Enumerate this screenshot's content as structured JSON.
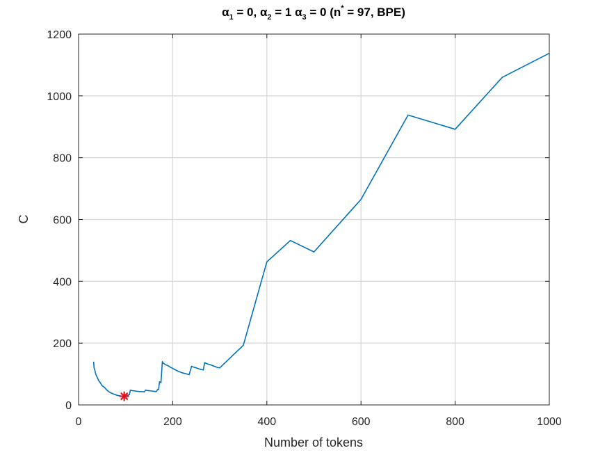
{
  "chart_data": {
    "type": "line",
    "title": {
      "alpha": "α",
      "sub1": "1",
      "sub2": "2",
      "sub3": "3",
      "part1": " = 0, ",
      "part2": " = 1 ",
      "part3": " = 0 (n",
      "sup": "*",
      "part4": " = 97, BPE)"
    },
    "xlabel": "Number of tokens",
    "ylabel": "C",
    "xlim": [
      0,
      1000
    ],
    "ylim": [
      0,
      1200
    ],
    "xticks": [
      0,
      200,
      400,
      600,
      800,
      1000
    ],
    "yticks": [
      0,
      200,
      400,
      600,
      800,
      1000,
      1200
    ],
    "grid": true,
    "line_color": "#0072BD",
    "marker_color": "#E0141E",
    "series": [
      {
        "x": [
          32,
          33,
          35,
          37,
          40,
          43,
          46,
          50,
          55,
          60,
          65,
          70,
          75,
          80,
          85,
          90,
          95,
          97,
          100,
          105,
          108,
          110,
          112,
          115,
          120,
          125,
          130,
          135,
          140,
          142,
          145,
          150,
          155,
          160,
          165,
          168,
          170,
          172,
          175,
          178,
          180,
          185,
          190,
          195,
          200,
          205,
          210,
          215,
          220,
          225,
          230,
          235,
          240,
          245,
          250,
          255,
          260,
          265,
          268,
          270,
          275,
          280,
          285,
          290,
          295,
          300,
          350,
          400,
          450,
          500,
          600,
          700,
          800,
          900,
          1000
        ],
        "y": [
          140,
          120,
          110,
          97,
          88,
          78,
          72,
          62,
          57,
          48,
          42,
          38,
          35,
          32,
          30,
          29,
          28,
          28,
          30,
          32,
          33,
          48,
          47,
          46,
          45,
          44,
          43,
          43,
          42,
          48,
          47,
          46,
          45,
          44,
          43,
          50,
          50,
          75,
          72,
          140,
          135,
          130,
          127,
          122,
          118,
          114,
          110,
          107,
          104,
          102,
          100,
          98,
          125,
          122,
          120,
          117,
          115,
          113,
          137,
          135,
          132,
          130,
          127,
          124,
          121,
          120,
          193,
          463,
          532,
          495,
          665,
          938,
          892,
          1060,
          1138
        ]
      }
    ],
    "minimum": {
      "x": 97,
      "y": 28
    }
  }
}
